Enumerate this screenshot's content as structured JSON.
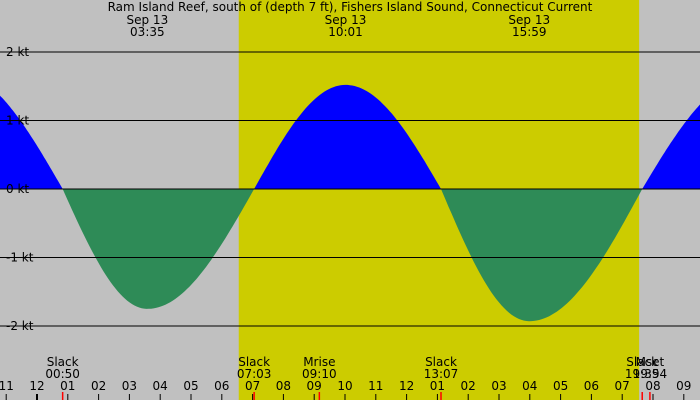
{
  "chart_data": {
    "type": "area",
    "title": "Ram Island Reef, south of (depth 7 ft), Fishers Island Sound, Connecticut Current",
    "top_labels": [
      {
        "date": "Sep 13",
        "time": "03:35",
        "hour": 3.583
      },
      {
        "date": "Sep 13",
        "time": "10:01",
        "hour": 10.017
      },
      {
        "date": "Sep 13",
        "time": "15:59",
        "hour": 15.983
      }
    ],
    "y_ticks": [
      {
        "value": 2,
        "label": "2 kt"
      },
      {
        "value": 1,
        "label": "1 kt"
      },
      {
        "value": 0,
        "label": "0 kt"
      },
      {
        "value": -1,
        "label": "-1 kt"
      },
      {
        "value": -2,
        "label": "-2 kt"
      }
    ],
    "ylim": [
      -2.5,
      2.78
    ],
    "xlim": [
      -1.2,
      21.55
    ],
    "x_ticks": [
      {
        "value": -1,
        "label": "11"
      },
      {
        "value": 0,
        "label": "12"
      },
      {
        "value": 1,
        "label": "01"
      },
      {
        "value": 2,
        "label": "02"
      },
      {
        "value": 3,
        "label": "03"
      },
      {
        "value": 4,
        "label": "04"
      },
      {
        "value": 5,
        "label": "05"
      },
      {
        "value": 6,
        "label": "06"
      },
      {
        "value": 7,
        "label": "07"
      },
      {
        "value": 8,
        "label": "08"
      },
      {
        "value": 9,
        "label": "09"
      },
      {
        "value": 10,
        "label": "10"
      },
      {
        "value": 11,
        "label": "11"
      },
      {
        "value": 12,
        "label": "12"
      },
      {
        "value": 13,
        "label": "01"
      },
      {
        "value": 14,
        "label": "02"
      },
      {
        "value": 15,
        "label": "03"
      },
      {
        "value": 16,
        "label": "04"
      },
      {
        "value": 17,
        "label": "05"
      },
      {
        "value": 18,
        "label": "06"
      },
      {
        "value": 19,
        "label": "07"
      },
      {
        "value": 20,
        "label": "08"
      },
      {
        "value": 21,
        "label": "09"
      }
    ],
    "current_points": [
      {
        "hour": -2.6,
        "speed": 1.7
      },
      {
        "hour": 0.833,
        "speed": 0
      },
      {
        "hour": 3.583,
        "speed": -1.75
      },
      {
        "hour": 7.05,
        "speed": 0
      },
      {
        "hour": 10.017,
        "speed": 1.52
      },
      {
        "hour": 13.117,
        "speed": 0
      },
      {
        "hour": 15.983,
        "speed": -1.93
      },
      {
        "hour": 19.65,
        "speed": 0
      },
      {
        "hour": 23.0,
        "speed": 1.6
      }
    ],
    "daylight": {
      "start": 6.55,
      "end": 19.55
    },
    "bottom_events": [
      {
        "label": "Slack",
        "time": "00:50",
        "hour": 0.833
      },
      {
        "label": "Slack",
        "time": "07:03",
        "hour": 7.05
      },
      {
        "label": "Mrise",
        "time": "09:10",
        "hour": 9.167
      },
      {
        "label": "Slack",
        "time": "13:07",
        "hour": 13.117
      },
      {
        "label": "Slack",
        "time": "19:39",
        "hour": 19.65
      },
      {
        "label": "Mset",
        "time": "19:54",
        "hour": 19.9
      }
    ],
    "colors": {
      "background": "#c0c0c0",
      "daylight": "#cccc00",
      "flood": "#0000ff",
      "ebb": "#2e8b57",
      "grid": "#000000",
      "event_tick": "#ff0000"
    }
  }
}
